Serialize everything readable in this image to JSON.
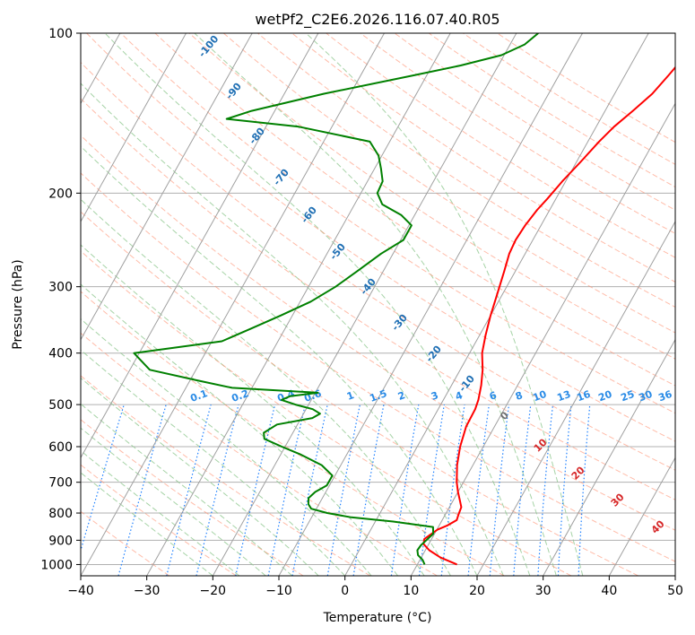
{
  "chart_data": {
    "type": "line",
    "title": "wetPf2_C2E6.2026.116.07.40.R05",
    "xlabel": "Temperature (°C)",
    "ylabel": "Pressure (hPa)",
    "xlim": [
      -40,
      50
    ],
    "ylim": [
      1050,
      100
    ],
    "y_scale": "log",
    "skew_per_decade": 45,
    "grid": true,
    "x_ticks": [
      -40,
      -30,
      -20,
      -10,
      0,
      10,
      20,
      30,
      40,
      50
    ],
    "y_ticks": [
      100,
      200,
      300,
      400,
      500,
      600,
      700,
      800,
      900,
      1000
    ],
    "series": [
      {
        "color": "#ff0000",
        "points": [
          [
            1000,
            16.0
          ],
          [
            970,
            12.9
          ],
          [
            940,
            10.6
          ],
          [
            915,
            9.2
          ],
          [
            895,
            8.9
          ],
          [
            880,
            9.4
          ],
          [
            860,
            10.1
          ],
          [
            845,
            11.2
          ],
          [
            825,
            12.2
          ],
          [
            805,
            12.0
          ],
          [
            780,
            11.8
          ],
          [
            760,
            11.1
          ],
          [
            730,
            10.0
          ],
          [
            700,
            9.0
          ],
          [
            650,
            7.6
          ],
          [
            600,
            6.5
          ],
          [
            550,
            5.7
          ],
          [
            510,
            5.6
          ],
          [
            490,
            5.3
          ],
          [
            475,
            4.9
          ],
          [
            460,
            4.5
          ],
          [
            430,
            3.4
          ],
          [
            400,
            1.9
          ],
          [
            370,
            0.9
          ],
          [
            340,
            0.0
          ],
          [
            310,
            -0.8
          ],
          [
            280,
            -1.7
          ],
          [
            260,
            -2.4
          ],
          [
            245,
            -2.6
          ],
          [
            230,
            -2.4
          ],
          [
            215,
            -1.9
          ],
          [
            205,
            -1.3
          ],
          [
            190,
            -0.5
          ],
          [
            175,
            0.6
          ],
          [
            160,
            1.7
          ],
          [
            150,
            2.7
          ],
          [
            140,
            4.2
          ],
          [
            130,
            5.7
          ],
          [
            120,
            6.6
          ],
          [
            112,
            7.3
          ],
          [
            106,
            7.6
          ],
          [
            100,
            8.0
          ]
        ]
      },
      {
        "color": "#008000",
        "points": [
          [
            1000,
            11.1
          ],
          [
            980,
            10.4
          ],
          [
            960,
            9.3
          ],
          [
            940,
            8.8
          ],
          [
            920,
            8.9
          ],
          [
            900,
            9.3
          ],
          [
            875,
            9.8
          ],
          [
            850,
            9.2
          ],
          [
            830,
            2.7
          ],
          [
            815,
            -4.0
          ],
          [
            800,
            -8.0
          ],
          [
            785,
            -10.8
          ],
          [
            770,
            -11.6
          ],
          [
            750,
            -12.1
          ],
          [
            730,
            -11.6
          ],
          [
            710,
            -10.4
          ],
          [
            680,
            -10.4
          ],
          [
            650,
            -12.9
          ],
          [
            620,
            -17.1
          ],
          [
            600,
            -20.5
          ],
          [
            580,
            -23.8
          ],
          [
            565,
            -24.4
          ],
          [
            545,
            -23.1
          ],
          [
            530,
            -18.3
          ],
          [
            520,
            -17.5
          ],
          [
            510,
            -19.0
          ],
          [
            500,
            -22.0
          ],
          [
            490,
            -24.5
          ],
          [
            482,
            -23.5
          ],
          [
            475,
            -19.6
          ],
          [
            465,
            -33.0
          ],
          [
            450,
            -39.0
          ],
          [
            430,
            -47.0
          ],
          [
            400,
            -50.8
          ],
          [
            380,
            -38.5
          ],
          [
            360,
            -35.2
          ],
          [
            340,
            -31.8
          ],
          [
            320,
            -28.4
          ],
          [
            300,
            -25.9
          ],
          [
            280,
            -23.9
          ],
          [
            260,
            -21.8
          ],
          [
            245,
            -19.6
          ],
          [
            230,
            -19.6
          ],
          [
            220,
            -22.0
          ],
          [
            210,
            -25.8
          ],
          [
            200,
            -27.5
          ],
          [
            190,
            -27.7
          ],
          [
            180,
            -29.0
          ],
          [
            170,
            -30.5
          ],
          [
            160,
            -33.0
          ],
          [
            150,
            -45.0
          ],
          [
            145,
            -56.6
          ],
          [
            140,
            -53.5
          ],
          [
            130,
            -44.0
          ],
          [
            120,
            -31.9
          ],
          [
            115,
            -25.7
          ],
          [
            110,
            -20.4
          ],
          [
            105,
            -17.8
          ],
          [
            100,
            -16.7
          ]
        ]
      }
    ],
    "isotherm_labels": [
      "-100",
      "-90",
      "-80",
      "-70",
      "-60",
      "-50",
      "-40",
      "-30",
      "-20",
      "-10"
    ],
    "mixing_ratio_labels": [
      "0.1",
      "0.2",
      "0.4",
      "0.6",
      "1",
      "1.5",
      "2",
      "3",
      "4",
      "6",
      "8",
      "10",
      "13",
      "16",
      "20",
      "25",
      "30",
      "36"
    ],
    "dry_adiabat_labels": [
      "0",
      "10",
      "20",
      "30",
      "40"
    ],
    "colors": {
      "temperature": "#ff0000",
      "dewpoint": "#008000",
      "isotherm": "#a0a0a0",
      "dry_adiabat": "#ff9070",
      "moist_adiabat": "#90c890",
      "mixing_ratio": "#1e80ff",
      "isotherm_label": "#1f6fb4",
      "mixing_label": "#2a8be6",
      "dry_label": "#d62728",
      "dry_zero_label": "#707070"
    }
  }
}
